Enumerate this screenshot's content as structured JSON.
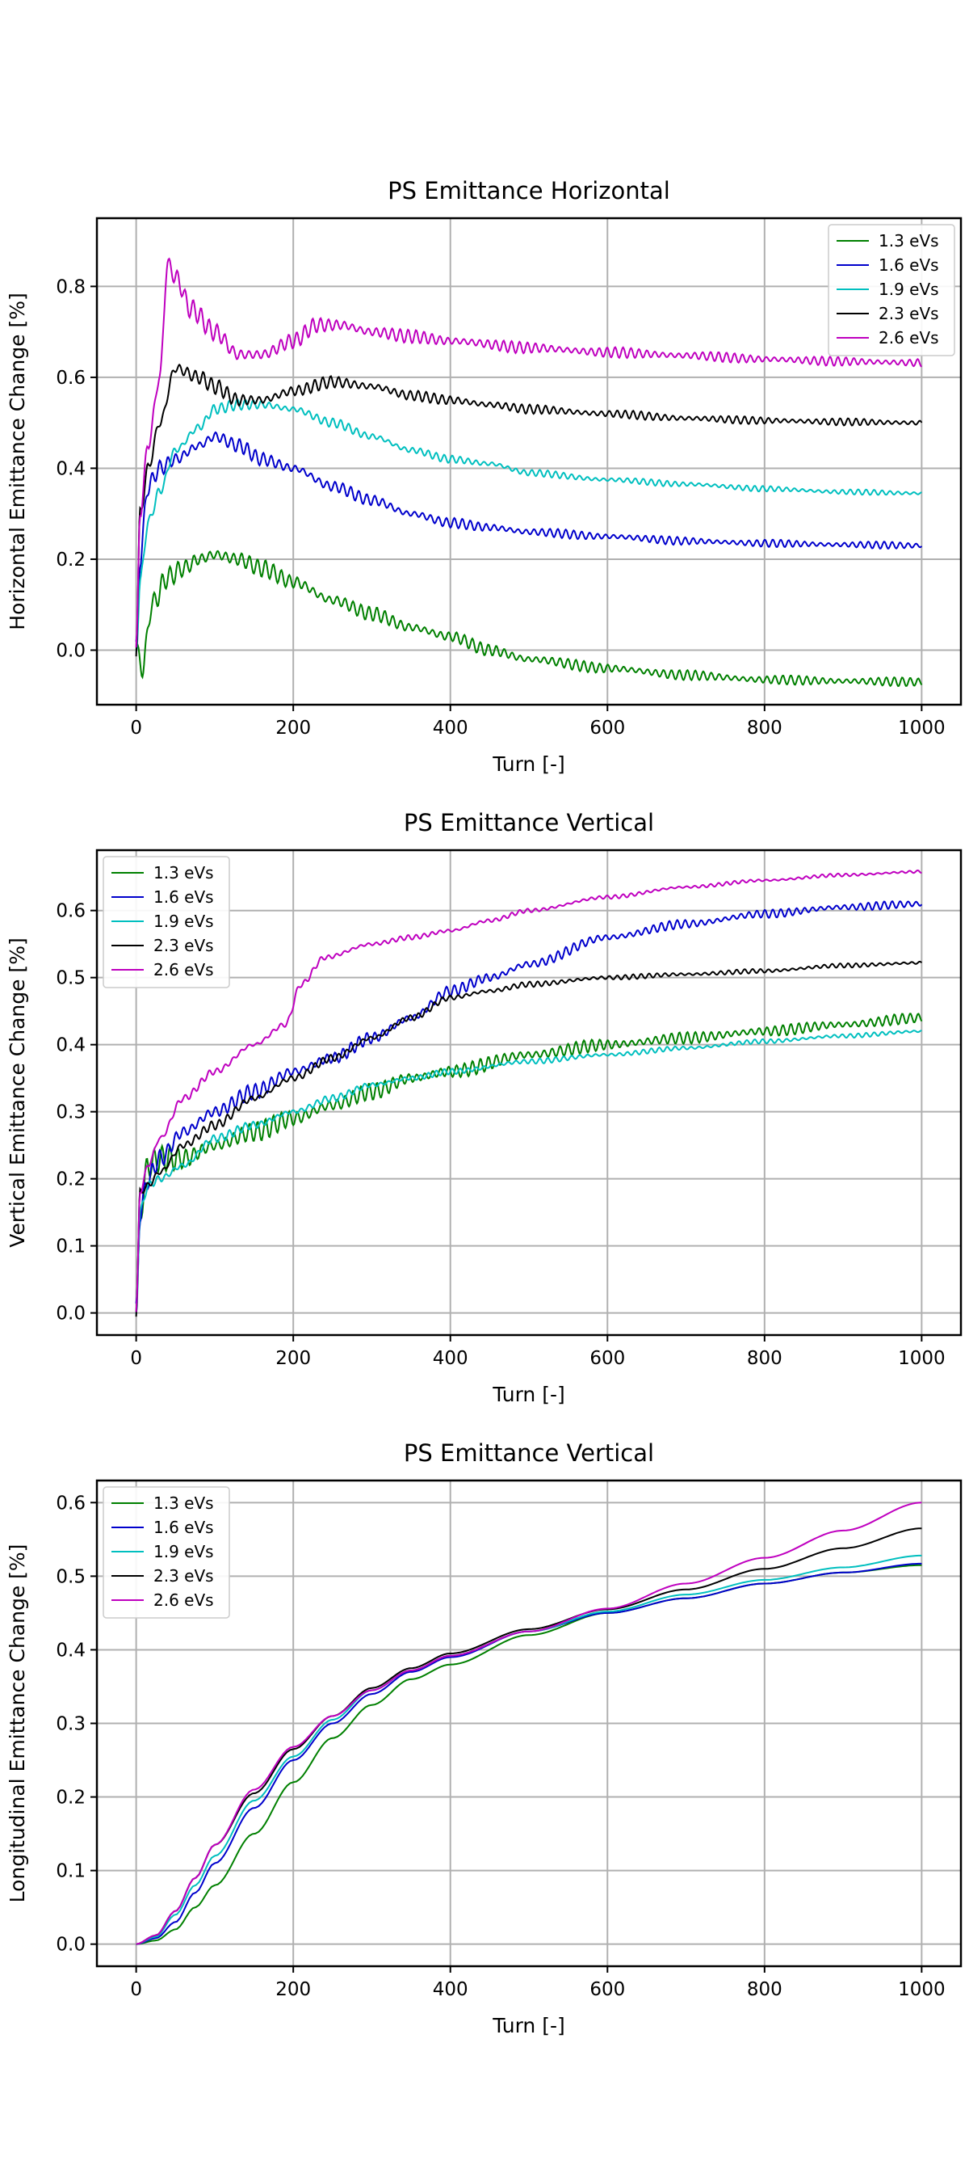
{
  "chart_data": [
    {
      "type": "line",
      "title": "PS Emittance Horizontal",
      "xlabel": "Turn [-]",
      "ylabel": "Horizontal Emittance Change [%]",
      "xlim": [
        -50,
        1050
      ],
      "ylim": [
        -0.12,
        0.95
      ],
      "xticks": [
        0,
        200,
        400,
        600,
        800,
        1000
      ],
      "yticks": [
        0.0,
        0.2,
        0.4,
        0.6,
        0.8
      ],
      "yticks_format": 1,
      "grid": true,
      "legend_loc": "top-right",
      "series": [
        {
          "name": "1.3 eVs",
          "color": "#008000",
          "osc_amp": 0.025,
          "x": [
            0,
            8,
            20,
            40,
            60,
            80,
            100,
            130,
            160,
            200,
            250,
            300,
            350,
            400,
            450,
            500,
            600,
            700,
            800,
            900,
            1000
          ],
          "y": [
            0.0,
            -0.04,
            0.1,
            0.16,
            0.18,
            0.2,
            0.21,
            0.2,
            0.18,
            0.15,
            0.11,
            0.08,
            0.05,
            0.03,
            0.0,
            -0.02,
            -0.04,
            -0.055,
            -0.065,
            -0.068,
            -0.07
          ]
        },
        {
          "name": "1.6 eVs",
          "color": "#0000cc",
          "osc_amp": 0.02,
          "x": [
            0,
            5,
            15,
            30,
            50,
            80,
            100,
            130,
            160,
            200,
            250,
            300,
            350,
            400,
            450,
            500,
            600,
            700,
            800,
            900,
            1000
          ],
          "y": [
            0.0,
            0.2,
            0.36,
            0.4,
            0.42,
            0.45,
            0.47,
            0.45,
            0.42,
            0.4,
            0.36,
            0.33,
            0.3,
            0.28,
            0.27,
            0.26,
            0.25,
            0.24,
            0.235,
            0.232,
            0.23
          ]
        },
        {
          "name": "1.9 eVs",
          "color": "#00bfbf",
          "osc_amp": 0.015,
          "x": [
            0,
            5,
            15,
            30,
            50,
            80,
            100,
            130,
            160,
            200,
            250,
            300,
            350,
            400,
            450,
            500,
            600,
            700,
            800,
            900,
            1000
          ],
          "y": [
            0.0,
            0.15,
            0.28,
            0.35,
            0.44,
            0.49,
            0.53,
            0.54,
            0.54,
            0.53,
            0.5,
            0.47,
            0.44,
            0.42,
            0.41,
            0.39,
            0.375,
            0.365,
            0.355,
            0.348,
            0.345
          ]
        },
        {
          "name": "2.3 eVs",
          "color": "#000000",
          "osc_amp": 0.02,
          "x": [
            0,
            5,
            15,
            30,
            50,
            80,
            100,
            130,
            160,
            200,
            250,
            300,
            350,
            400,
            450,
            500,
            600,
            700,
            800,
            900,
            1000
          ],
          "y": [
            0.0,
            0.3,
            0.4,
            0.5,
            0.62,
            0.6,
            0.58,
            0.55,
            0.55,
            0.57,
            0.59,
            0.58,
            0.56,
            0.55,
            0.54,
            0.53,
            0.52,
            0.51,
            0.505,
            0.502,
            0.5
          ]
        },
        {
          "name": "2.6 eVs",
          "color": "#bf00bf",
          "osc_amp": 0.025,
          "x": [
            0,
            5,
            15,
            30,
            40,
            50,
            70,
            100,
            130,
            160,
            200,
            230,
            260,
            300,
            350,
            400,
            500,
            600,
            700,
            800,
            900,
            1000
          ],
          "y": [
            0.0,
            0.3,
            0.45,
            0.6,
            0.85,
            0.82,
            0.75,
            0.7,
            0.65,
            0.65,
            0.68,
            0.715,
            0.715,
            0.7,
            0.69,
            0.68,
            0.665,
            0.655,
            0.648,
            0.64,
            0.635,
            0.632
          ]
        }
      ]
    },
    {
      "type": "line",
      "title": "PS Emittance Vertical",
      "xlabel": "Turn [-]",
      "ylabel": "Vertical Emittance Change [%]",
      "xlim": [
        -50,
        1050
      ],
      "ylim": [
        -0.033,
        0.69
      ],
      "xticks": [
        0,
        200,
        400,
        600,
        800,
        1000
      ],
      "yticks": [
        0.0,
        0.1,
        0.2,
        0.3,
        0.4,
        0.5,
        0.6
      ],
      "yticks_format": 1,
      "grid": true,
      "legend_loc": "top-left",
      "series": [
        {
          "name": "1.3 eVs",
          "color": "#008000",
          "osc_amp": 0.02,
          "x": [
            0,
            5,
            15,
            30,
            60,
            100,
            150,
            200,
            250,
            300,
            350,
            400,
            500,
            600,
            700,
            800,
            900,
            1000
          ],
          "y": [
            0.0,
            0.15,
            0.22,
            0.23,
            0.23,
            0.25,
            0.27,
            0.29,
            0.31,
            0.33,
            0.35,
            0.36,
            0.385,
            0.4,
            0.41,
            0.42,
            0.43,
            0.44
          ]
        },
        {
          "name": "1.6 eVs",
          "color": "#0000cc",
          "osc_amp": 0.015,
          "x": [
            0,
            5,
            15,
            30,
            60,
            100,
            150,
            200,
            250,
            300,
            350,
            400,
            450,
            500,
            600,
            700,
            800,
            900,
            1000
          ],
          "y": [
            0.0,
            0.15,
            0.2,
            0.23,
            0.27,
            0.3,
            0.33,
            0.36,
            0.38,
            0.41,
            0.44,
            0.48,
            0.5,
            0.52,
            0.56,
            0.58,
            0.595,
            0.605,
            0.61
          ]
        },
        {
          "name": "1.9 eVs",
          "color": "#00bfbf",
          "osc_amp": 0.008,
          "x": [
            0,
            5,
            15,
            30,
            60,
            100,
            150,
            200,
            250,
            300,
            350,
            400,
            500,
            600,
            700,
            800,
            900,
            1000
          ],
          "y": [
            0.0,
            0.15,
            0.19,
            0.2,
            0.22,
            0.26,
            0.28,
            0.3,
            0.32,
            0.34,
            0.35,
            0.36,
            0.375,
            0.385,
            0.395,
            0.405,
            0.413,
            0.42
          ]
        },
        {
          "name": "2.3 eVs",
          "color": "#000000",
          "osc_amp": 0.008,
          "x": [
            0,
            5,
            15,
            30,
            60,
            100,
            150,
            200,
            250,
            300,
            350,
            400,
            450,
            500,
            600,
            700,
            800,
            900,
            1000
          ],
          "y": [
            0.0,
            0.18,
            0.19,
            0.21,
            0.25,
            0.28,
            0.32,
            0.35,
            0.38,
            0.41,
            0.44,
            0.47,
            0.48,
            0.49,
            0.5,
            0.505,
            0.51,
            0.518,
            0.522
          ]
        },
        {
          "name": "2.6 eVs",
          "color": "#bf00bf",
          "osc_amp": 0.006,
          "x": [
            0,
            5,
            15,
            30,
            60,
            100,
            150,
            190,
            210,
            240,
            300,
            350,
            400,
            450,
            500,
            600,
            700,
            800,
            900,
            1000
          ],
          "y": [
            0.0,
            0.18,
            0.22,
            0.26,
            0.32,
            0.36,
            0.4,
            0.43,
            0.49,
            0.53,
            0.55,
            0.56,
            0.57,
            0.585,
            0.6,
            0.62,
            0.635,
            0.645,
            0.653,
            0.658
          ]
        }
      ]
    },
    {
      "type": "line",
      "title": "PS Emittance Vertical",
      "xlabel": "Turn [-]",
      "ylabel": "Longitudinal Emittance Change [%]",
      "xlim": [
        -50,
        1050
      ],
      "ylim": [
        -0.03,
        0.63
      ],
      "xticks": [
        0,
        200,
        400,
        600,
        800,
        1000
      ],
      "yticks": [
        0.0,
        0.1,
        0.2,
        0.3,
        0.4,
        0.5,
        0.6
      ],
      "yticks_format": 1,
      "grid": true,
      "legend_loc": "top-left",
      "series": [
        {
          "name": "1.3 eVs",
          "color": "#008000",
          "osc_amp": 0,
          "x": [
            0,
            25,
            50,
            75,
            100,
            150,
            200,
            250,
            300,
            350,
            400,
            500,
            600,
            700,
            800,
            900,
            1000
          ],
          "y": [
            0.0,
            0.005,
            0.02,
            0.05,
            0.08,
            0.15,
            0.22,
            0.28,
            0.325,
            0.36,
            0.38,
            0.42,
            0.45,
            0.47,
            0.49,
            0.505,
            0.515
          ]
        },
        {
          "name": "1.6 eVs",
          "color": "#0000cc",
          "osc_amp": 0,
          "x": [
            0,
            25,
            50,
            75,
            100,
            150,
            200,
            250,
            300,
            350,
            400,
            500,
            600,
            700,
            800,
            900,
            1000
          ],
          "y": [
            0.0,
            0.008,
            0.03,
            0.07,
            0.11,
            0.185,
            0.25,
            0.3,
            0.34,
            0.37,
            0.39,
            0.425,
            0.45,
            0.47,
            0.49,
            0.505,
            0.517
          ]
        },
        {
          "name": "1.9 eVs",
          "color": "#00bfbf",
          "osc_amp": 0,
          "x": [
            0,
            25,
            50,
            75,
            100,
            150,
            200,
            250,
            300,
            350,
            400,
            500,
            600,
            700,
            800,
            900,
            1000
          ],
          "y": [
            0.0,
            0.01,
            0.04,
            0.08,
            0.12,
            0.195,
            0.255,
            0.305,
            0.345,
            0.372,
            0.392,
            0.425,
            0.452,
            0.475,
            0.495,
            0.512,
            0.528
          ]
        },
        {
          "name": "2.3 eVs",
          "color": "#000000",
          "osc_amp": 0,
          "x": [
            0,
            25,
            50,
            75,
            100,
            150,
            200,
            250,
            300,
            350,
            400,
            500,
            600,
            700,
            800,
            900,
            1000
          ],
          "y": [
            0.0,
            0.012,
            0.045,
            0.09,
            0.135,
            0.205,
            0.265,
            0.31,
            0.348,
            0.375,
            0.395,
            0.428,
            0.455,
            0.482,
            0.51,
            0.538,
            0.565
          ]
        },
        {
          "name": "2.6 eVs",
          "color": "#bf00bf",
          "osc_amp": 0,
          "x": [
            0,
            25,
            50,
            75,
            100,
            150,
            200,
            250,
            300,
            350,
            400,
            500,
            600,
            700,
            800,
            900,
            1000
          ],
          "y": [
            0.0,
            0.012,
            0.045,
            0.09,
            0.135,
            0.21,
            0.268,
            0.31,
            0.345,
            0.372,
            0.392,
            0.425,
            0.456,
            0.49,
            0.525,
            0.562,
            0.6
          ]
        }
      ]
    }
  ]
}
